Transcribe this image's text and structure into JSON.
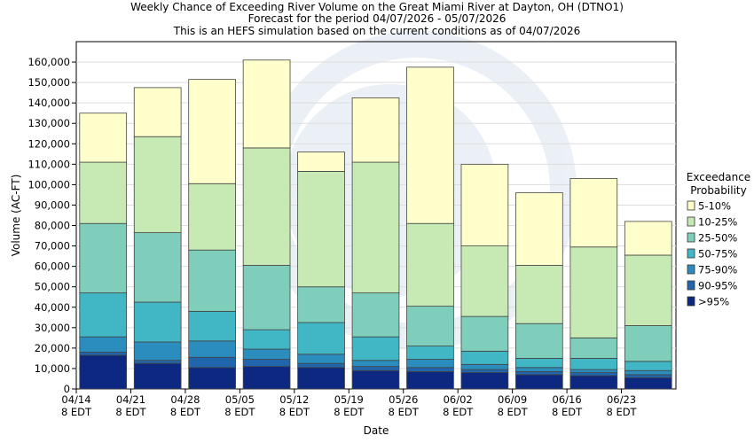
{
  "chart_data": {
    "type": "bar",
    "stacked": true,
    "title": [
      "Weekly Chance of Exceeding River Volume on the Great Miami River at Dayton, OH (DTNO1)",
      "Forecast for the period 04/07/2026 - 05/07/2026",
      "This is an HEFS simulation based on the current conditions as of 04/07/2026"
    ],
    "xlabel": "Date",
    "ylabel": "Volume (AC-FT)",
    "ylim": [
      0,
      170000
    ],
    "yticks": [
      0,
      10000,
      20000,
      30000,
      40000,
      50000,
      60000,
      70000,
      80000,
      90000,
      100000,
      110000,
      120000,
      130000,
      140000,
      150000,
      160000
    ],
    "ytick_labels": [
      "0",
      "10,000",
      "20,000",
      "30,000",
      "40,000",
      "50,000",
      "60,000",
      "70,000",
      "80,000",
      "90,000",
      "100,000",
      "110,000",
      "120,000",
      "130,000",
      "140,000",
      "150,000",
      "160,000"
    ],
    "xtick_labels": [
      [
        "04/14",
        "8 EDT"
      ],
      [
        "04/21",
        "8 EDT"
      ],
      [
        "04/28",
        "8 EDT"
      ],
      [
        "05/05",
        "8 EDT"
      ],
      [
        "05/12",
        "8 EDT"
      ],
      [
        "05/19",
        "8 EDT"
      ],
      [
        "05/26",
        "8 EDT"
      ],
      [
        "06/02",
        "8 EDT"
      ],
      [
        "06/09",
        "8 EDT"
      ],
      [
        "06/16",
        "8 EDT"
      ],
      [
        "06/23",
        "8 EDT"
      ]
    ],
    "legend": {
      "title": [
        "Exceedance",
        "Probability"
      ],
      "position": "right"
    },
    "bar_count": 11,
    "grid": true,
    "series": [
      {
        "name": ">95%",
        "color": "#0c2880",
        "cumulative": [
          16500,
          12500,
          10500,
          11000,
          10500,
          9000,
          8500,
          8000,
          7000,
          6500,
          5500
        ]
      },
      {
        "name": "90-95%",
        "color": "#2166ac",
        "cumulative": [
          18000,
          14000,
          15500,
          14500,
          12500,
          11000,
          10500,
          9500,
          8500,
          8000,
          7000
        ]
      },
      {
        "name": "75-90%",
        "color": "#2b8cbe",
        "cumulative": [
          25500,
          23000,
          23500,
          19500,
          17000,
          14000,
          14500,
          12000,
          10500,
          9500,
          9000
        ]
      },
      {
        "name": "50-75%",
        "color": "#41b6c4",
        "cumulative": [
          47000,
          42500,
          38000,
          29000,
          32500,
          25500,
          21000,
          18500,
          15000,
          15000,
          13500
        ]
      },
      {
        "name": "25-50%",
        "color": "#7fcdbb",
        "cumulative": [
          81000,
          76500,
          68000,
          60500,
          50000,
          47000,
          40500,
          35500,
          32000,
          25000,
          31000
        ]
      },
      {
        "name": "10-25%",
        "color": "#c7e9b4",
        "cumulative": [
          111000,
          123500,
          100500,
          118000,
          106500,
          111000,
          81000,
          70000,
          60500,
          69500,
          65500
        ]
      },
      {
        "name": "5-10%",
        "color": "#ffffcc",
        "cumulative": [
          135000,
          147500,
          151500,
          161000,
          116000,
          142500,
          157500,
          110000,
          96000,
          103000,
          82000
        ]
      }
    ]
  }
}
